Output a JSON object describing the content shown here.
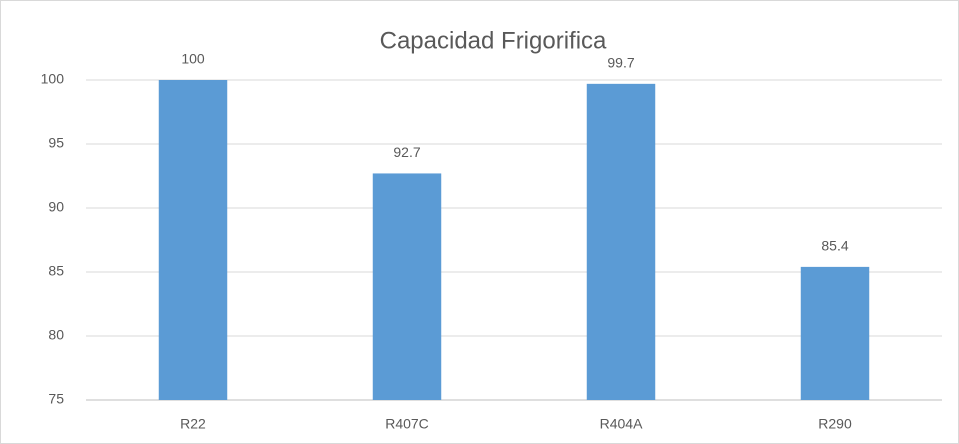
{
  "chart_data": {
    "type": "bar",
    "title": "Capacidad Frigorifica",
    "categories": [
      "R22",
      "R407C",
      "R404A",
      "R290"
    ],
    "values": [
      100,
      92.7,
      99.7,
      85.4
    ],
    "color": "#5b9bd5",
    "ylim": [
      75,
      100
    ],
    "yticks": [
      75,
      80,
      85,
      90,
      95,
      100
    ],
    "grid": true
  }
}
